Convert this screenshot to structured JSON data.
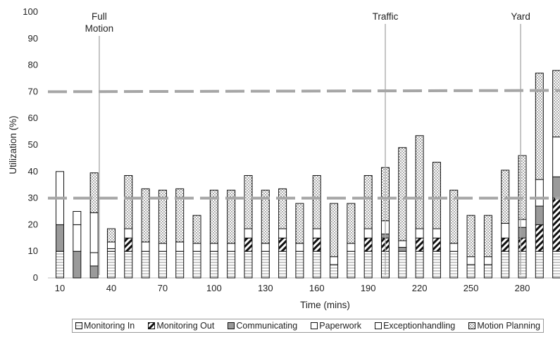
{
  "chart_data": {
    "type": "bar",
    "stacked": true,
    "xlabel": "Time (mins)",
    "ylabel": "Utilization  (%)",
    "ylim": [
      0,
      100
    ],
    "yticks": [
      0,
      10,
      20,
      30,
      40,
      50,
      60,
      70,
      80,
      90,
      100
    ],
    "xtick_labels": [
      "10",
      "40",
      "70",
      "100",
      "130",
      "160",
      "190",
      "220",
      "250",
      "280"
    ],
    "x": [
      10,
      20,
      30,
      40,
      50,
      60,
      70,
      80,
      90,
      100,
      110,
      120,
      130,
      140,
      150,
      160,
      170,
      180,
      190,
      200,
      210,
      220,
      230,
      240,
      250,
      260,
      270,
      280,
      290,
      300
    ],
    "series": [
      {
        "name": "Monitoring In",
        "pattern": "hlines",
        "values": [
          10,
          0,
          0,
          10,
          10,
          10,
          10,
          10,
          10,
          10,
          10,
          10,
          10,
          10,
          10,
          10,
          5,
          10,
          10,
          10,
          10,
          10,
          10,
          10,
          5,
          5,
          10,
          10,
          10,
          10
        ]
      },
      {
        "name": "Monitoring Out",
        "pattern": "diagonal",
        "values": [
          0,
          0,
          0,
          0,
          5,
          0,
          0,
          0,
          0,
          0,
          0,
          5,
          0,
          5,
          0,
          5,
          0,
          0,
          5,
          5,
          0,
          5,
          5,
          0,
          0,
          0,
          5,
          5,
          10,
          20
        ]
      },
      {
        "name": "Communicating",
        "pattern": "gray",
        "values": [
          10,
          10,
          4.5,
          0,
          0,
          0,
          0,
          0,
          0,
          0,
          0,
          0,
          0,
          0,
          0,
          0,
          0,
          0,
          0,
          1.5,
          1.5,
          0,
          0,
          0,
          0,
          0,
          0,
          4,
          7,
          8
        ]
      },
      {
        "name": "Paperwork",
        "pattern": "white",
        "values": [
          0,
          10,
          5,
          1,
          3.5,
          3.5,
          3,
          3.5,
          3,
          3,
          3,
          3.5,
          3,
          3.5,
          3,
          3.5,
          3,
          3,
          3.5,
          5,
          2.5,
          3.5,
          3.5,
          3,
          3,
          3,
          5.5,
          3,
          10,
          15
        ]
      },
      {
        "name": "Exceptionhandling",
        "pattern": "white",
        "values": [
          20,
          5,
          15,
          2.5,
          0,
          0,
          0,
          0,
          0,
          0,
          0,
          0,
          0,
          0,
          0,
          0,
          0,
          0,
          0,
          0,
          0,
          0,
          0,
          0,
          0,
          0,
          0,
          0,
          0,
          0
        ]
      },
      {
        "name": "Motion Planning",
        "pattern": "dots",
        "values": [
          0,
          0,
          15,
          5,
          20,
          20,
          20,
          20,
          10.5,
          20,
          20,
          20,
          20,
          15,
          15,
          20,
          20,
          15,
          20,
          20,
          35,
          35,
          25,
          20,
          15.5,
          15.5,
          20,
          24,
          40,
          25
        ]
      }
    ],
    "reference_lines": [
      {
        "y_start": 70,
        "y_end": 70.5,
        "style": "dashed"
      },
      {
        "y_start": 30,
        "y_end": 30,
        "style": "dashed"
      }
    ],
    "annotations": [
      {
        "text": "Full\nMotion",
        "x": 33
      },
      {
        "text": "Traffic",
        "x": 200
      },
      {
        "text": "Yard",
        "x": 279
      }
    ],
    "legend_position": "bottom",
    "grid": false
  }
}
